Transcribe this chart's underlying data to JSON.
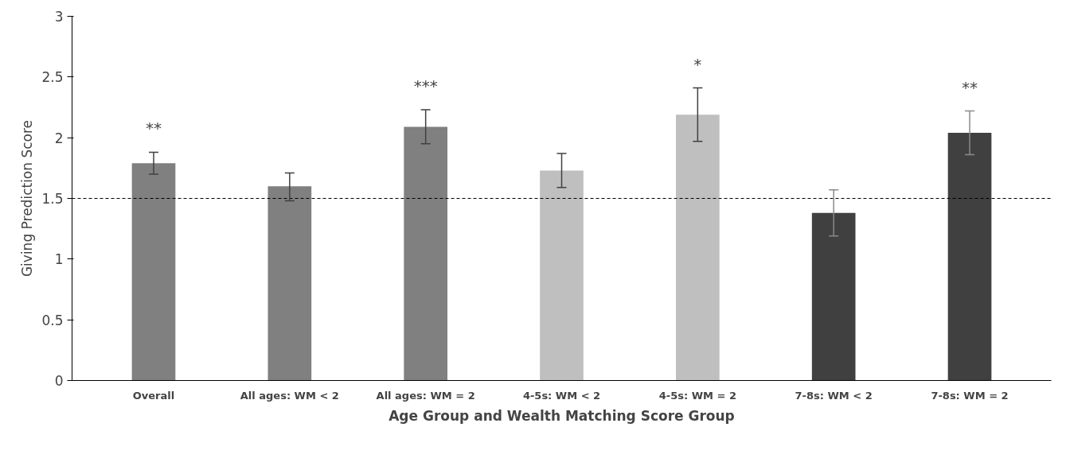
{
  "chart_data": {
    "type": "bar",
    "xlabel": "Age Group and Wealth Matching Score Group",
    "ylabel": "Giving Prediction Score",
    "categories": [
      "Overall",
      "All ages: WM < 2",
      "All ages: WM = 2",
      "4-5s: WM < 2",
      "4-5s: WM = 2",
      "7-8s: WM < 2",
      "7-8s: WM = 2"
    ],
    "values": [
      1.79,
      1.6,
      2.09,
      1.73,
      2.19,
      1.38,
      2.04
    ],
    "colors": [
      "#808080",
      "#808080",
      "#808080",
      "#bfbfbf",
      "#bfbfbf",
      "#404040",
      "#404040"
    ],
    "errors": [
      [
        1.7,
        1.88
      ],
      [
        1.48,
        1.71
      ],
      [
        1.95,
        2.23
      ],
      [
        1.59,
        1.87
      ],
      [
        1.97,
        2.41
      ],
      [
        1.19,
        1.57
      ],
      [
        1.86,
        2.22
      ]
    ],
    "ylim": [
      0,
      3
    ],
    "yticks": [
      0,
      0.5,
      1,
      1.5,
      2,
      2.5,
      3
    ],
    "grid": false,
    "value_labels": [
      "**",
      null,
      "***",
      null,
      "*",
      null,
      "**"
    ],
    "ref_lines": [
      {
        "axis": "y",
        "value": 1.5,
        "label": null,
        "color": "#000000",
        "line_style": "dashed"
      }
    ]
  }
}
